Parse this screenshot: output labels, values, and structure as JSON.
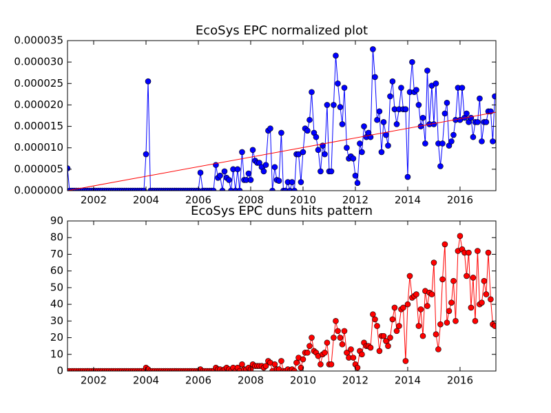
{
  "chart_data": [
    {
      "type": "line",
      "title": "EcoSys EPC normalized plot",
      "xlim": [
        2001,
        2017.37
      ],
      "xticks": [
        2002,
        2004,
        2006,
        2008,
        2010,
        2012,
        2014,
        2016
      ],
      "ylim": [
        0,
        3.5e-05
      ],
      "yticks": [
        {
          "value": 0,
          "label": "0.000000"
        },
        {
          "value": 5e-06,
          "label": "0.000005"
        },
        {
          "value": 1e-05,
          "label": "0.000010"
        },
        {
          "value": 1.5e-05,
          "label": "0.000015"
        },
        {
          "value": 2e-05,
          "label": "0.000020"
        },
        {
          "value": 2.5e-05,
          "label": "0.000025"
        },
        {
          "value": 3e-05,
          "label": "0.000030"
        },
        {
          "value": 3.5e-05,
          "label": "0.000035"
        }
      ],
      "x": [
        2001.0,
        2001.08,
        2001.17,
        2001.25,
        2001.33,
        2001.42,
        2001.5,
        2001.58,
        2001.67,
        2001.75,
        2001.83,
        2001.92,
        2002.0,
        2002.08,
        2002.17,
        2002.25,
        2002.33,
        2002.42,
        2002.5,
        2002.58,
        2002.67,
        2002.75,
        2002.83,
        2002.92,
        2003.0,
        2003.08,
        2003.17,
        2003.25,
        2003.33,
        2003.42,
        2003.5,
        2003.58,
        2003.67,
        2003.75,
        2003.83,
        2003.92,
        2004.0,
        2004.08,
        2004.17,
        2004.25,
        2004.33,
        2004.42,
        2004.5,
        2004.58,
        2004.67,
        2004.75,
        2004.83,
        2004.92,
        2005.0,
        2005.08,
        2005.17,
        2005.25,
        2005.33,
        2005.42,
        2005.5,
        2005.58,
        2005.67,
        2005.75,
        2005.83,
        2005.92,
        2006.0,
        2006.08,
        2006.17,
        2006.25,
        2006.33,
        2006.42,
        2006.5,
        2006.58,
        2006.67,
        2006.75,
        2006.83,
        2006.92,
        2007.0,
        2007.08,
        2007.17,
        2007.25,
        2007.33,
        2007.42,
        2007.5,
        2007.58,
        2007.67,
        2007.75,
        2007.83,
        2007.92,
        2008.0,
        2008.08,
        2008.17,
        2008.25,
        2008.33,
        2008.42,
        2008.5,
        2008.58,
        2008.67,
        2008.75,
        2008.83,
        2008.92,
        2009.0,
        2009.08,
        2009.17,
        2009.25,
        2009.33,
        2009.42,
        2009.5,
        2009.58,
        2009.67,
        2009.75,
        2009.83,
        2009.92,
        2010.0,
        2010.08,
        2010.17,
        2010.25,
        2010.33,
        2010.42,
        2010.5,
        2010.58,
        2010.67,
        2010.75,
        2010.83,
        2010.92,
        2011.0,
        2011.08,
        2011.17,
        2011.25,
        2011.33,
        2011.42,
        2011.5,
        2011.58,
        2011.67,
        2011.75,
        2011.83,
        2011.92,
        2012.0,
        2012.08,
        2012.17,
        2012.25,
        2012.33,
        2012.42,
        2012.5,
        2012.58,
        2012.67,
        2012.75,
        2012.83,
        2012.92,
        2013.0,
        2013.08,
        2013.17,
        2013.25,
        2013.33,
        2013.42,
        2013.5,
        2013.58,
        2013.67,
        2013.75,
        2013.83,
        2013.92,
        2014.0,
        2014.08,
        2014.17,
        2014.25,
        2014.33,
        2014.42,
        2014.5,
        2014.58,
        2014.67,
        2014.75,
        2014.83,
        2014.92,
        2015.0,
        2015.08,
        2015.17,
        2015.25,
        2015.33,
        2015.42,
        2015.5,
        2015.58,
        2015.67,
        2015.75,
        2015.83,
        2015.92,
        2016.0,
        2016.08,
        2016.17,
        2016.25,
        2016.33,
        2016.42,
        2016.5,
        2016.58,
        2016.67,
        2016.75,
        2016.83,
        2016.92,
        2017.0,
        2017.08,
        2017.17,
        2017.25,
        2017.33
      ],
      "series": [
        {
          "color": "#0000ff",
          "values": [
            5.2e-06,
            0,
            0,
            0,
            0,
            0,
            0,
            0,
            0,
            0,
            0,
            0,
            0,
            0,
            0,
            0,
            0,
            0,
            0,
            0,
            0,
            0,
            0,
            0,
            0,
            0,
            0,
            0,
            0,
            0,
            0,
            0,
            0,
            0,
            0,
            0,
            8.5e-06,
            2.55e-05,
            0,
            0,
            0,
            0,
            0,
            0,
            0,
            0,
            0,
            0,
            0,
            0,
            0,
            0,
            0,
            0,
            0,
            0,
            0,
            0,
            0,
            0,
            0,
            4.2e-06,
            0,
            0,
            0,
            0,
            0,
            0,
            6e-06,
            3e-06,
            3.5e-06,
            0,
            4.5e-06,
            3e-06,
            2.5e-06,
            0,
            5e-06,
            0,
            5e-06,
            0,
            9e-06,
            2.5e-06,
            2.5e-06,
            4e-06,
            2.5e-06,
            9.5e-06,
            7e-06,
            6.5e-06,
            6.5e-06,
            5.5e-06,
            4.5e-06,
            6e-06,
            1.4e-05,
            1.45e-05,
            0,
            5.5e-06,
            2.5e-06,
            2.3e-06,
            1.35e-05,
            0,
            0,
            2e-06,
            0,
            2e-06,
            0,
            8.5e-06,
            8.5e-06,
            2e-06,
            9e-06,
            1.45e-05,
            1.4e-05,
            1.65e-05,
            2.3e-05,
            1.35e-05,
            1.25e-05,
            9.5e-06,
            4.5e-06,
            1.05e-05,
            8.5e-06,
            2e-05,
            4.5e-06,
            4.5e-06,
            2e-05,
            3.15e-05,
            2.5e-05,
            1.95e-05,
            1.55e-05,
            2.4e-05,
            1e-05,
            7.5e-06,
            8e-06,
            7.5e-06,
            3.5e-06,
            1.8e-06,
            1.1e-05,
            9e-06,
            1.5e-05,
            1.25e-05,
            1.35e-05,
            1.25e-05,
            3.3e-05,
            2.65e-05,
            1.65e-05,
            1.85e-05,
            9e-06,
            1.6e-05,
            1.3e-05,
            1.05e-05,
            2.2e-05,
            2.55e-05,
            1.9e-05,
            1.55e-05,
            1.9e-05,
            2.4e-05,
            1.9e-05,
            1.9e-05,
            3.2e-06,
            2.3e-05,
            3e-05,
            2.3e-05,
            2.35e-05,
            2e-05,
            1.5e-05,
            1.7e-05,
            1.1e-05,
            2.8e-05,
            1.55e-05,
            2.45e-05,
            1.55e-05,
            2.5e-05,
            1.1e-05,
            5.7e-06,
            1.1e-05,
            1.8e-05,
            2.05e-05,
            1.05e-05,
            1.15e-05,
            1.3e-05,
            1.65e-05,
            2.4e-05,
            1.65e-05,
            2.4e-05,
            1.7e-05,
            1.8e-05,
            1.6e-05,
            1.7e-05,
            1.25e-05,
            1.6e-05,
            1.6e-05,
            2.15e-05,
            1.15e-05,
            1.6e-05,
            1.6e-05,
            1.85e-05,
            1.85e-05,
            1.15e-05,
            2.2e-05
          ]
        },
        {
          "color": "#ff0000",
          "x": [
            2001,
            2017.37
          ],
          "values": [
            0,
            1.83e-05
          ]
        }
      ]
    },
    {
      "type": "line",
      "title": "EcoSys EPC duns hits pattern",
      "xlim": [
        2001,
        2017.37
      ],
      "xticks": [
        2002,
        2004,
        2006,
        2008,
        2010,
        2012,
        2014,
        2016
      ],
      "ylim": [
        0,
        90
      ],
      "yticks": [
        0,
        10,
        20,
        30,
        40,
        50,
        60,
        70,
        80,
        90
      ],
      "x": [
        2001.0,
        2001.08,
        2001.17,
        2001.25,
        2001.33,
        2001.42,
        2001.5,
        2001.58,
        2001.67,
        2001.75,
        2001.83,
        2001.92,
        2002.0,
        2002.08,
        2002.17,
        2002.25,
        2002.33,
        2002.42,
        2002.5,
        2002.58,
        2002.67,
        2002.75,
        2002.83,
        2002.92,
        2003.0,
        2003.08,
        2003.17,
        2003.25,
        2003.33,
        2003.42,
        2003.5,
        2003.58,
        2003.67,
        2003.75,
        2003.83,
        2003.92,
        2004.0,
        2004.08,
        2004.17,
        2004.25,
        2004.33,
        2004.42,
        2004.5,
        2004.58,
        2004.67,
        2004.75,
        2004.83,
        2004.92,
        2005.0,
        2005.08,
        2005.17,
        2005.25,
        2005.33,
        2005.42,
        2005.5,
        2005.58,
        2005.67,
        2005.75,
        2005.83,
        2005.92,
        2006.0,
        2006.08,
        2006.17,
        2006.25,
        2006.33,
        2006.42,
        2006.5,
        2006.58,
        2006.67,
        2006.75,
        2006.83,
        2006.92,
        2007.0,
        2007.08,
        2007.17,
        2007.25,
        2007.33,
        2007.42,
        2007.5,
        2007.58,
        2007.67,
        2007.75,
        2007.83,
        2007.92,
        2008.0,
        2008.08,
        2008.17,
        2008.25,
        2008.33,
        2008.42,
        2008.5,
        2008.58,
        2008.67,
        2008.75,
        2008.83,
        2008.92,
        2009.0,
        2009.08,
        2009.17,
        2009.25,
        2009.33,
        2009.42,
        2009.5,
        2009.58,
        2009.67,
        2009.75,
        2009.83,
        2009.92,
        2010.0,
        2010.08,
        2010.17,
        2010.25,
        2010.33,
        2010.42,
        2010.5,
        2010.58,
        2010.67,
        2010.75,
        2010.83,
        2010.92,
        2011.0,
        2011.08,
        2011.17,
        2011.25,
        2011.33,
        2011.42,
        2011.5,
        2011.58,
        2011.67,
        2011.75,
        2011.83,
        2011.92,
        2012.0,
        2012.08,
        2012.17,
        2012.25,
        2012.33,
        2012.42,
        2012.5,
        2012.58,
        2012.67,
        2012.75,
        2012.83,
        2012.92,
        2013.0,
        2013.08,
        2013.17,
        2013.25,
        2013.33,
        2013.42,
        2013.5,
        2013.58,
        2013.67,
        2013.75,
        2013.83,
        2013.92,
        2014.0,
        2014.08,
        2014.17,
        2014.25,
        2014.33,
        2014.42,
        2014.5,
        2014.58,
        2014.67,
        2014.75,
        2014.83,
        2014.92,
        2015.0,
        2015.08,
        2015.17,
        2015.25,
        2015.33,
        2015.42,
        2015.5,
        2015.58,
        2015.67,
        2015.75,
        2015.83,
        2015.92,
        2016.0,
        2016.08,
        2016.17,
        2016.25,
        2016.33,
        2016.42,
        2016.5,
        2016.58,
        2016.67,
        2016.75,
        2016.83,
        2016.92,
        2017.0,
        2017.08,
        2017.17,
        2017.25,
        2017.33
      ],
      "series": [
        {
          "color": "#ff0000",
          "values": [
            0,
            0,
            0,
            0,
            0,
            0,
            0,
            0,
            0,
            0,
            0,
            0,
            0,
            0,
            0,
            0,
            0,
            0,
            0,
            0,
            0,
            0,
            0,
            0,
            0,
            0,
            0,
            0,
            0,
            0,
            0,
            0,
            0,
            0,
            0,
            0,
            2,
            1,
            0,
            0,
            0,
            0,
            0,
            0,
            0,
            0,
            0,
            0,
            0,
            0,
            0,
            0,
            0,
            0,
            0,
            0,
            0,
            0,
            0,
            0,
            0,
            1,
            0,
            0,
            0,
            0,
            0,
            0,
            2,
            1,
            1,
            0,
            1,
            2,
            1,
            0,
            2,
            0,
            2,
            0,
            4,
            1,
            1,
            2,
            1,
            4,
            3,
            3,
            3,
            3,
            2,
            3,
            6,
            5,
            0,
            4,
            1,
            1,
            6,
            0,
            0,
            1,
            0,
            1,
            0,
            5,
            8,
            2,
            7,
            11,
            11,
            15,
            20,
            12,
            11,
            9,
            4,
            10,
            11,
            17,
            4,
            4,
            20,
            30,
            24,
            20,
            16,
            24,
            11,
            8,
            13,
            8,
            4,
            2,
            12,
            10,
            17,
            15,
            15,
            14,
            34,
            31,
            27,
            12,
            21,
            21,
            18,
            15,
            20,
            31,
            38,
            24,
            27,
            37,
            38,
            6,
            40,
            57,
            44,
            45,
            46,
            27,
            37,
            21,
            48,
            39,
            47,
            46,
            65,
            22,
            13,
            28,
            55,
            76,
            29,
            36,
            41,
            54,
            30,
            72,
            81,
            73,
            71,
            57,
            71,
            38,
            56,
            30,
            72,
            40,
            41,
            54,
            46,
            71,
            43,
            28,
            27
          ]
        }
      ]
    }
  ]
}
